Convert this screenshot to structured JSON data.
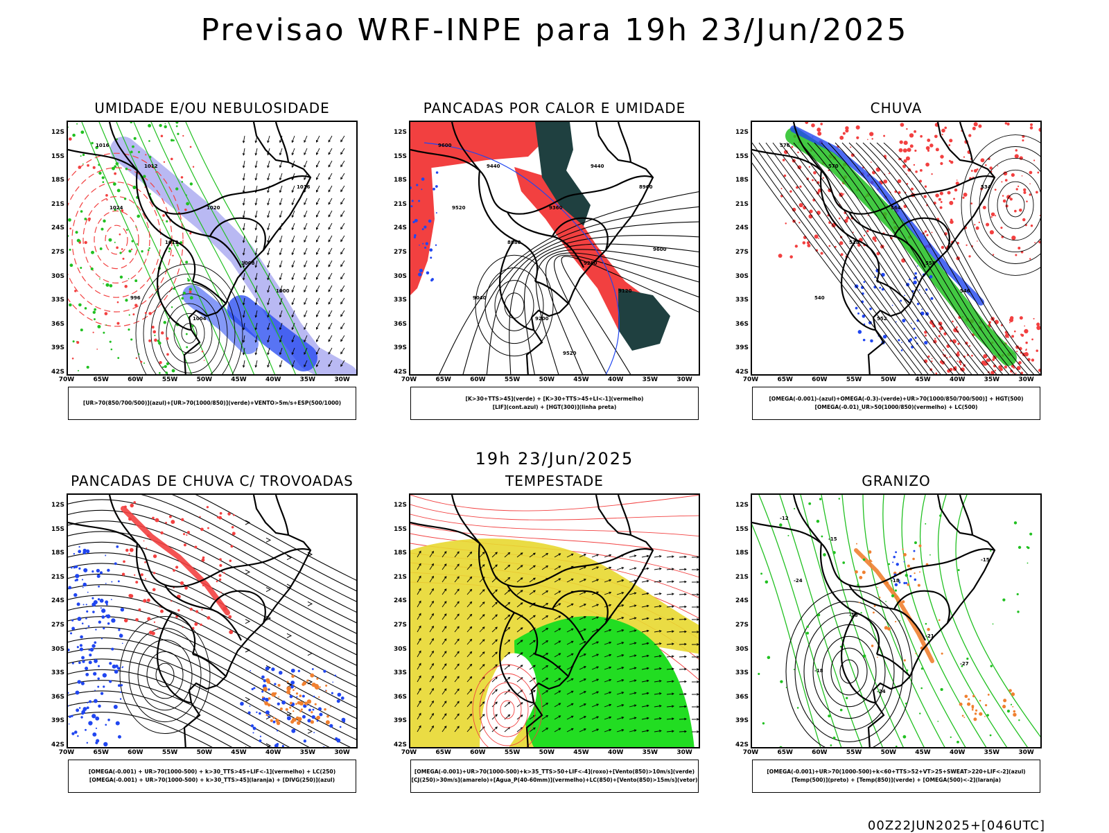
{
  "header": {
    "title": "Previsao WRF-INPE  para 19h 23/Jun/2025"
  },
  "middle": {
    "title": "19h 23/Jun/2025"
  },
  "footer": {
    "run": "00Z22JUN2025+[046UTC]"
  },
  "axes": {
    "lat_ticks": [
      "12S",
      "15S",
      "18S",
      "21S",
      "24S",
      "27S",
      "30S",
      "33S",
      "36S",
      "39S",
      "42S"
    ],
    "lon_ticks": [
      "70W",
      "65W",
      "60W",
      "55W",
      "50W",
      "45W",
      "40W",
      "35W",
      "30W"
    ]
  },
  "colors": {
    "red": "#f24040",
    "green": "#21c021",
    "blue": "#2046f0",
    "lightblue": "#a8a8f0",
    "darkteal": "#1f4040",
    "yellow": "#e8d830",
    "orange": "#f08030",
    "lime": "#22dd22"
  },
  "panels": [
    {
      "id": "umidade",
      "title": "UMIDADE E/OU NEBULOSIDADE",
      "legend": [
        "[UR>70(850/700/500)](azul)+[UR>70(1000/850)](verde)+VENTO>5m/s+ESP(500/1000)"
      ],
      "labels": [
        "1016",
        "1012",
        "1020",
        "1008",
        "1004",
        "1000",
        "996",
        "1016",
        "1012",
        "1024"
      ]
    },
    {
      "id": "pancadas",
      "title": "PANCADAS POR CALOR E UMIDADE",
      "legend": [
        "[K>30+TTS>45](verde) + [K>30+TTS>45+LI<-1](vermelho)",
        "[LIF](cont.azul) + [HGT(300)](linha preta)"
      ],
      "labels": [
        "9600",
        "9440",
        "9360",
        "9280",
        "9200",
        "9120",
        "9040",
        "8960",
        "8880",
        "9520",
        "9440",
        "9600",
        "9520"
      ]
    },
    {
      "id": "chuva",
      "title": "CHUVA",
      "legend": [
        "[OMEGA(-0.001)-(azul)+OMEGA(-0.3)-(verde)+UR>70(1000/850/700/500)] + HGT(500)",
        "[OMEGA(-0.01)_UR>50(1000/850)(vermelho) + LC(500)"
      ],
      "labels": [
        "576",
        "570",
        "564",
        "558",
        "552",
        "546",
        "540",
        "534",
        "528"
      ]
    },
    {
      "id": "trovoadas",
      "title": "PANCADAS DE CHUVA C/ TROVOADAS",
      "legend": [
        "[OMEGA(-0.001) + UR>70(1000-500) + k>30_TTS>45+LIF<-1](vermelho) + LC(250)",
        "[OMEGA(-0.001) + UR>70(1000-500) + k>30_TTS>45](laranja) + [DIVG(250)](azul)"
      ],
      "labels": []
    },
    {
      "id": "tempestade",
      "title": "TEMPESTADE",
      "legend": [
        "[OMEGA(-0.001)+UR>70(1000-500)+k>35_TTS>50+LIF<-4](roxo)+[Vento(850)>10m/s](verde)",
        "[CJ(250)>30m/s](amarelo)+[Agua_P(40-60mm)](vermelho)+LC(850)+[Vento(850)>15m/s](vetor)"
      ],
      "labels": []
    },
    {
      "id": "granizo",
      "title": "GRANIZO",
      "legend": [
        "[OMEGA(-0.001)+UR>70(1000-500)+k<60+TTS>52+VT>25+SWEAT>220+LIF<-2](azul)",
        "[Temp(500)](preto) + [Temp(850)](verde) + [OMEGA(500)<-2](laranja)"
      ],
      "labels": [
        "-12",
        "-15",
        "-18",
        "-21",
        "-24",
        "-27",
        "-18",
        "-15",
        "-18",
        "-24"
      ]
    }
  ]
}
